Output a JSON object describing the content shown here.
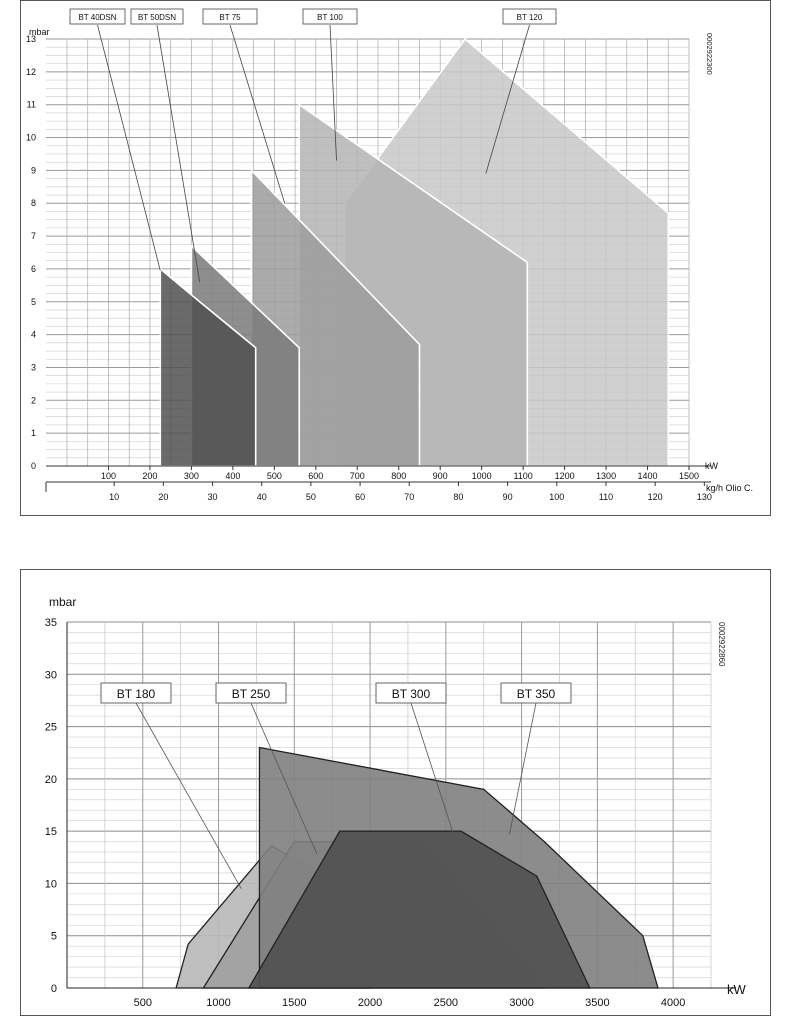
{
  "chart_data": [
    {
      "type": "area",
      "title": "",
      "ylabel": "mbar",
      "xlabel": "kW",
      "x2label": "kg/h Olio C.",
      "doc_code": "0002922300",
      "ylim": [
        0,
        13
      ],
      "xlim": [
        0,
        1500
      ],
      "yticks": [
        "0",
        "1",
        "2",
        "3",
        "4",
        "5",
        "6",
        "7",
        "8",
        "9",
        "10",
        "11",
        "12",
        "13"
      ],
      "xticks": [
        "100",
        "200",
        "300",
        "400",
        "500",
        "600",
        "700",
        "800",
        "900",
        "1000",
        "1100",
        "1200",
        "1300",
        "1400",
        "1500"
      ],
      "x2ticks": [
        "10",
        "20",
        "30",
        "40",
        "50",
        "60",
        "70",
        "80",
        "90",
        "100",
        "110",
        "120",
        "130"
      ],
      "grid": true,
      "series": [
        {
          "name": "BT 120",
          "color": "#c8c8c8",
          "points": [
            [
              670,
              0
            ],
            [
              670,
              8.0
            ],
            [
              960,
              13.0
            ],
            [
              1450,
              7.7
            ],
            [
              1450,
              0
            ]
          ]
        },
        {
          "name": "BT 100",
          "color": "#b4b4b4",
          "points": [
            [
              560,
              0
            ],
            [
              560,
              11.0
            ],
            [
              1110,
              6.2
            ],
            [
              1110,
              0
            ]
          ]
        },
        {
          "name": "BT 75",
          "color": "#9c9c9c",
          "points": [
            [
              445,
              0
            ],
            [
              445,
              9.0
            ],
            [
              850,
              3.7
            ],
            [
              850,
              0
            ]
          ]
        },
        {
          "name": "BT 50DSN",
          "color": "#7a7a7a",
          "points": [
            [
              300,
              0
            ],
            [
              300,
              6.7
            ],
            [
              560,
              3.6
            ],
            [
              560,
              0
            ]
          ]
        },
        {
          "name": "BT 40DSN",
          "color": "#505050",
          "points": [
            [
              225,
              0
            ],
            [
              225,
              6.0
            ],
            [
              320,
              5.0
            ],
            [
              455,
              3.6
            ],
            [
              455,
              0
            ]
          ]
        }
      ]
    },
    {
      "type": "area",
      "title": "",
      "ylabel": "mbar",
      "xlabel": "kW",
      "doc_code": "0002922860",
      "ylim": [
        0,
        35
      ],
      "xlim": [
        0,
        4250
      ],
      "yticks": [
        "0",
        "5",
        "10",
        "15",
        "20",
        "25",
        "30",
        "35"
      ],
      "xticks": [
        "500",
        "1000",
        "1500",
        "2000",
        "2500",
        "3000",
        "3500",
        "4000"
      ],
      "grid": true,
      "series": [
        {
          "name": "BT 180",
          "color": "#b8b8b8",
          "points": [
            [
              720,
              0
            ],
            [
              800,
              4.2
            ],
            [
              1350,
              13.6
            ],
            [
              2000,
              8.0
            ],
            [
              2000,
              0
            ]
          ]
        },
        {
          "name": "BT 250",
          "color": "#a0a0a0",
          "points": [
            [
              900,
              0
            ],
            [
              1500,
              14.0
            ],
            [
              2350,
              14.0
            ],
            [
              3150,
              0
            ]
          ]
        },
        {
          "name": "BT 350",
          "color": "#808080",
          "points": [
            [
              1270,
              0
            ],
            [
              1270,
              23.0
            ],
            [
              2750,
              19.0
            ],
            [
              3150,
              14.0
            ],
            [
              3800,
              5.0
            ],
            [
              3900,
              0
            ]
          ]
        },
        {
          "name": "BT 300",
          "color": "#505050",
          "points": [
            [
              1200,
              0
            ],
            [
              1800,
              15.0
            ],
            [
              2600,
              15.0
            ],
            [
              3100,
              10.7
            ],
            [
              3450,
              0
            ]
          ]
        }
      ]
    }
  ],
  "labels1": [
    {
      "text": "BT 40DSN",
      "anchor": [
        225,
        5.95
      ]
    },
    {
      "text": "BT 50DSN",
      "anchor": [
        320,
        5.6
      ]
    },
    {
      "text": "BT 75",
      "anchor": [
        525,
        8.0
      ]
    },
    {
      "text": "BT 100",
      "anchor": [
        650,
        9.3
      ]
    },
    {
      "text": "BT 120",
      "anchor": [
        1010,
        8.9
      ]
    }
  ],
  "labels2": [
    {
      "text": "BT 180",
      "anchor": [
        1150,
        9.5
      ]
    },
    {
      "text": "BT 250",
      "anchor": [
        1650,
        12.8
      ]
    },
    {
      "text": "BT 300",
      "anchor": [
        2600,
        12.5
      ]
    },
    {
      "text": "BT 350",
      "anchor": [
        2920,
        14.7
      ]
    }
  ],
  "x2_offset_label": "kg/h Olio"
}
